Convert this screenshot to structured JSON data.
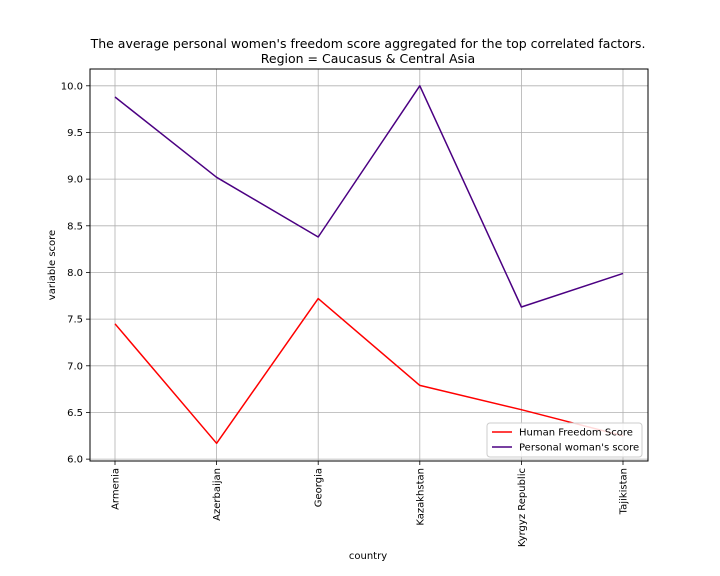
{
  "chart_data": {
    "type": "line",
    "title": "The average personal women's freedom score aggregated for the top correlated factors.",
    "subtitle": "Region = Caucasus & Central Asia",
    "xlabel": "country",
    "ylabel": "variable score",
    "categories": [
      "Armenia",
      "Azerbaijan",
      "Georgia",
      "Kazakhstan",
      "Kyrgyz Republic",
      "Tajikistan"
    ],
    "ylim": [
      5.98,
      10.18
    ],
    "yticks": [
      "6.0",
      "6.5",
      "7.0",
      "7.5",
      "8.0",
      "8.5",
      "9.0",
      "9.5",
      "10.0"
    ],
    "grid": true,
    "legend_position": "lower-right",
    "series": [
      {
        "name": "Human Freedom Score",
        "color": "#ff0000",
        "values": [
          7.45,
          6.17,
          7.72,
          6.79,
          6.53,
          6.25
        ]
      },
      {
        "name": "Personal woman's score",
        "color": "#4b0082",
        "values": [
          9.88,
          9.02,
          8.38,
          10.0,
          7.63,
          7.99
        ]
      }
    ]
  }
}
